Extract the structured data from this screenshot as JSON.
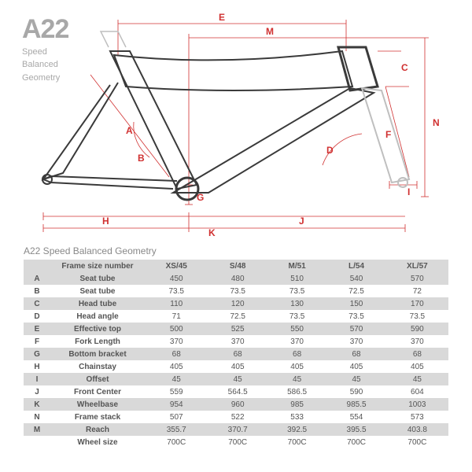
{
  "header": {
    "title": "A22",
    "sub1": "Speed",
    "sub2": "Balanced",
    "sub3": "Geometry"
  },
  "diagram": {
    "frame_stroke": "#3a3a3a",
    "frame_stroke_light": "#bfbfbf",
    "dim_color": "#d03030",
    "labels": {
      "E": "E",
      "M": "M",
      "C": "C",
      "N": "N",
      "F": "F",
      "D": "D",
      "I": "I",
      "A": "A",
      "B": "B",
      "G": "G",
      "H": "H",
      "K": "K",
      "J": "J"
    }
  },
  "table": {
    "caption": "A22 Speed Balanced Geometry",
    "header_first": "Frame size number",
    "columns": [
      "XS/45",
      "S/48",
      "M/51",
      "L/54",
      "XL/57"
    ],
    "rows": [
      {
        "k": "A",
        "l": "Seat tube",
        "v": [
          "450",
          "480",
          "510",
          "540",
          "570"
        ]
      },
      {
        "k": "B",
        "l": "Seat tube",
        "v": [
          "73.5",
          "73.5",
          "73.5",
          "72.5",
          "72"
        ]
      },
      {
        "k": "C",
        "l": "Head tube",
        "v": [
          "110",
          "120",
          "130",
          "150",
          "170"
        ]
      },
      {
        "k": "D",
        "l": "Head angle",
        "v": [
          "71",
          "72.5",
          "73.5",
          "73.5",
          "73.5"
        ]
      },
      {
        "k": "E",
        "l": "Effective top",
        "v": [
          "500",
          "525",
          "550",
          "570",
          "590"
        ]
      },
      {
        "k": "F",
        "l": "Fork Length",
        "v": [
          "370",
          "370",
          "370",
          "370",
          "370"
        ]
      },
      {
        "k": "G",
        "l": "Bottom bracket",
        "v": [
          "68",
          "68",
          "68",
          "68",
          "68"
        ]
      },
      {
        "k": "H",
        "l": "Chainstay",
        "v": [
          "405",
          "405",
          "405",
          "405",
          "405"
        ]
      },
      {
        "k": "I",
        "l": "Offset",
        "v": [
          "45",
          "45",
          "45",
          "45",
          "45"
        ]
      },
      {
        "k": "J",
        "l": "Front Center",
        "v": [
          "559",
          "564.5",
          "586.5",
          "590",
          "604"
        ]
      },
      {
        "k": "K",
        "l": "Wheelbase",
        "v": [
          "954",
          "960",
          "985",
          "985.5",
          "1003"
        ]
      },
      {
        "k": "N",
        "l": "Frame stack",
        "v": [
          "507",
          "522",
          "533",
          "554",
          "573"
        ]
      },
      {
        "k": "M",
        "l": "Reach",
        "v": [
          "355.7",
          "370.7",
          "392.5",
          "395.5",
          "403.8"
        ]
      },
      {
        "k": "",
        "l": "Wheel size",
        "v": [
          "700C",
          "700C",
          "700C",
          "700C",
          "700C"
        ]
      }
    ]
  }
}
